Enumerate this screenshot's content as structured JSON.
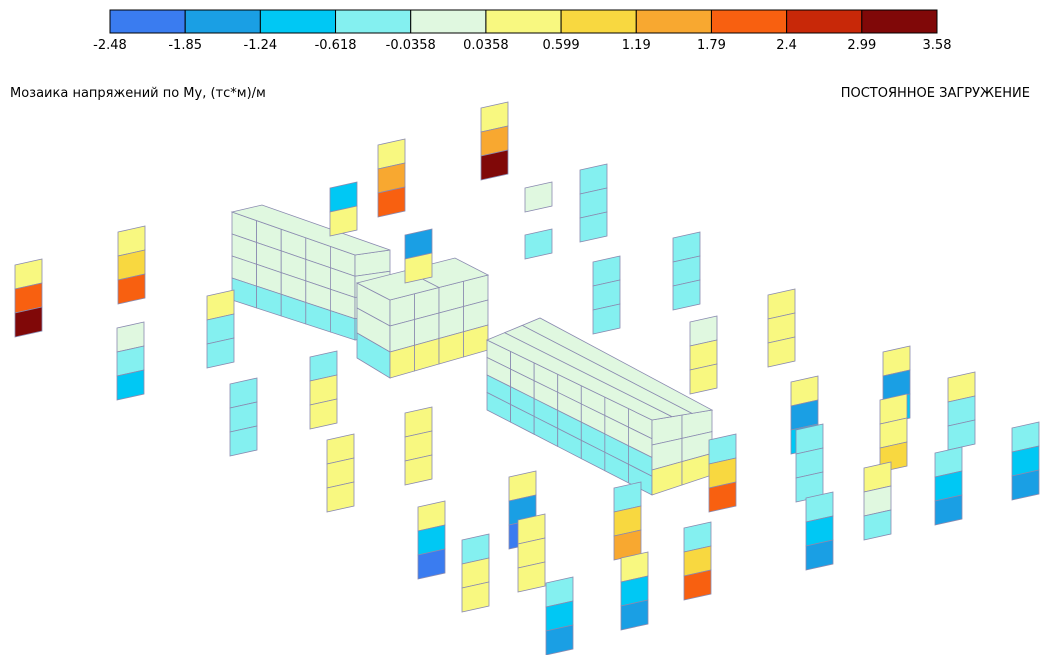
{
  "legend": {
    "ticks": [
      -2.48,
      -1.85,
      -1.24,
      -0.618,
      -0.0358,
      0.0358,
      0.599,
      1.19,
      1.79,
      2.4,
      2.99,
      3.58
    ],
    "colors": [
      "#3a7cf0",
      "#1a9fe4",
      "#00c8f4",
      "#84f0f0",
      "#e0f8e0",
      "#f8f880",
      "#f8d840",
      "#f8a830",
      "#f86010",
      "#c82808",
      "#800808"
    ]
  },
  "header": {
    "title": "Мозаика напряжений по My, (тс*м)/м",
    "load_case": "ПОСТОЯННОЕ ЗАГРУЖЕНИЕ"
  }
}
